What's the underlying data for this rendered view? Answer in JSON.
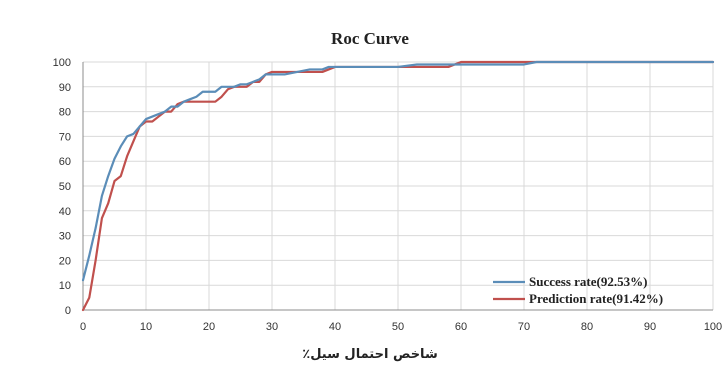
{
  "chart_data": {
    "type": "line",
    "title": "Roc Curve",
    "xlabel": "شاخص احتمال سیل٪",
    "ylabel": "",
    "xlim": [
      0,
      100
    ],
    "ylim": [
      0,
      100
    ],
    "xticks": [
      "0",
      "10",
      "20",
      "30",
      "40",
      "50",
      "60",
      "70",
      "80",
      "90",
      "100"
    ],
    "yticks": [
      "0",
      "10",
      "20",
      "30",
      "40",
      "50",
      "60",
      "70",
      "80",
      "90",
      "100"
    ],
    "grid": true,
    "legend_position": "bottom-right",
    "series": [
      {
        "name": "Success rate(92.53%)",
        "color": "#5b8db8",
        "x": [
          0,
          1,
          2,
          3,
          4,
          5,
          6,
          7,
          8,
          9,
          10,
          11,
          12,
          13,
          14,
          15,
          16,
          17,
          18,
          19,
          20,
          21,
          22,
          23,
          24,
          25,
          26,
          27,
          28,
          29,
          30,
          32,
          34,
          36,
          38,
          39,
          40,
          45,
          50,
          53,
          55,
          60,
          65,
          70,
          72,
          75,
          80,
          90,
          100
        ],
        "y": [
          12,
          22,
          33,
          46,
          54,
          61,
          66,
          70,
          71,
          74,
          77,
          78,
          79,
          80,
          82,
          82,
          84,
          85,
          86,
          88,
          88,
          88,
          90,
          90,
          90,
          91,
          91,
          92,
          93,
          95,
          95,
          95,
          96,
          97,
          97,
          98,
          98,
          98,
          98,
          99,
          99,
          99,
          99,
          99,
          100,
          100,
          100,
          100,
          100
        ]
      },
      {
        "name": "Prediction rate(91.42%)",
        "color": "#c0504d",
        "x": [
          0,
          1,
          2,
          3,
          4,
          5,
          6,
          7,
          8,
          9,
          10,
          11,
          12,
          13,
          14,
          15,
          16,
          17,
          18,
          19,
          20,
          21,
          22,
          23,
          24,
          25,
          26,
          27,
          28,
          29,
          30,
          32,
          34,
          36,
          38,
          40,
          45,
          50,
          55,
          58,
          60,
          65,
          70,
          75,
          80,
          90,
          100
        ],
        "y": [
          0,
          5,
          20,
          37,
          43,
          52,
          54,
          62,
          68,
          74,
          76,
          76,
          78,
          80,
          80,
          83,
          84,
          84,
          84,
          84,
          84,
          84,
          86,
          89,
          90,
          90,
          90,
          92,
          92,
          95,
          96,
          96,
          96,
          96,
          96,
          98,
          98,
          98,
          98,
          98,
          100,
          100,
          100,
          100,
          100,
          100,
          100
        ]
      }
    ]
  }
}
